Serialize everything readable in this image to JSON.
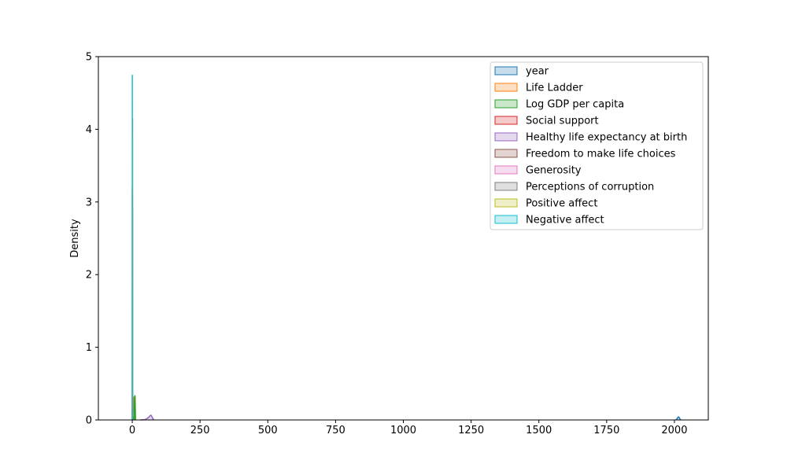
{
  "chart_data": {
    "type": "area",
    "title": "",
    "xlabel": "",
    "ylabel": "Density",
    "xlim": [
      -125,
      2125
    ],
    "ylim": [
      0,
      5
    ],
    "xticks": [
      0,
      250,
      500,
      750,
      1000,
      1250,
      1500,
      1750,
      2000
    ],
    "yticks": [
      0,
      1,
      2,
      3,
      4,
      5
    ],
    "grid": false,
    "legend_position": "top-right",
    "series": [
      {
        "name": "year",
        "color": "#1f77b4",
        "x": [
          2005,
          2008,
          2011,
          2013,
          2015,
          2017,
          2019,
          2021,
          2024
        ],
        "y": [
          0,
          0.008,
          0.025,
          0.036,
          0.041,
          0.036,
          0.025,
          0.008,
          0
        ]
      },
      {
        "name": "Life Ladder",
        "color": "#ff7f0e",
        "x": [
          1,
          2,
          3,
          4,
          5,
          5.5,
          6,
          7,
          8,
          9
        ],
        "y": [
          0,
          0.02,
          0.1,
          0.22,
          0.3,
          0.32,
          0.3,
          0.2,
          0.08,
          0
        ]
      },
      {
        "name": "Log GDP per capita",
        "color": "#2ca02c",
        "x": [
          5.5,
          7,
          8,
          9,
          9.5,
          10,
          10.5,
          11,
          12
        ],
        "y": [
          0,
          0.05,
          0.2,
          0.3,
          0.33,
          0.34,
          0.3,
          0.2,
          0
        ]
      },
      {
        "name": "Social support",
        "color": "#d62728",
        "x": [
          0.2,
          0.4,
          0.5,
          0.6,
          0.7,
          0.8,
          0.85,
          0.9,
          0.95,
          1.0,
          1.05
        ],
        "y": [
          0,
          0.3,
          0.6,
          1.1,
          1.9,
          3.0,
          3.6,
          4.15,
          3.8,
          2.2,
          0
        ]
      },
      {
        "name": "Healthy life expectancy at birth",
        "color": "#9467bd",
        "x": [
          30,
          45,
          50,
          55,
          60,
          63,
          66,
          69,
          72,
          75,
          80
        ],
        "y": [
          0,
          0.004,
          0.01,
          0.022,
          0.035,
          0.045,
          0.06,
          0.065,
          0.05,
          0.025,
          0
        ]
      },
      {
        "name": "Freedom to make life choices",
        "color": "#8c564b",
        "x": [
          0.2,
          0.4,
          0.6,
          0.75,
          0.85,
          0.95,
          1.05
        ],
        "y": [
          0,
          0.5,
          1.5,
          2.6,
          2.9,
          1.8,
          0
        ]
      },
      {
        "name": "Generosity",
        "color": "#e377c2",
        "x": [
          -0.4,
          -0.2,
          -0.1,
          0,
          0.1,
          0.2,
          0.4,
          0.6
        ],
        "y": [
          0,
          1.0,
          2.6,
          3.2,
          2.6,
          1.6,
          0.5,
          0
        ]
      },
      {
        "name": "Perceptions of corruption",
        "color": "#7f7f7f",
        "x": [
          0,
          0.3,
          0.5,
          0.7,
          0.8,
          0.85,
          0.9,
          1.0,
          1.05
        ],
        "y": [
          0,
          0.2,
          0.5,
          1.4,
          2.6,
          3.1,
          2.8,
          1.0,
          0
        ]
      },
      {
        "name": "Positive affect",
        "color": "#bcbd22",
        "x": [
          0.2,
          0.4,
          0.55,
          0.65,
          0.72,
          0.8,
          0.9,
          1.0
        ],
        "y": [
          0,
          0.7,
          2.2,
          3.6,
          3.9,
          2.8,
          0.8,
          0
        ]
      },
      {
        "name": "Negative affect",
        "color": "#17becf",
        "x": [
          0.05,
          0.15,
          0.2,
          0.25,
          0.3,
          0.35,
          0.45,
          0.6,
          0.75
        ],
        "y": [
          0,
          1.8,
          3.6,
          4.75,
          4.2,
          3.0,
          1.2,
          0.2,
          0
        ]
      }
    ]
  }
}
